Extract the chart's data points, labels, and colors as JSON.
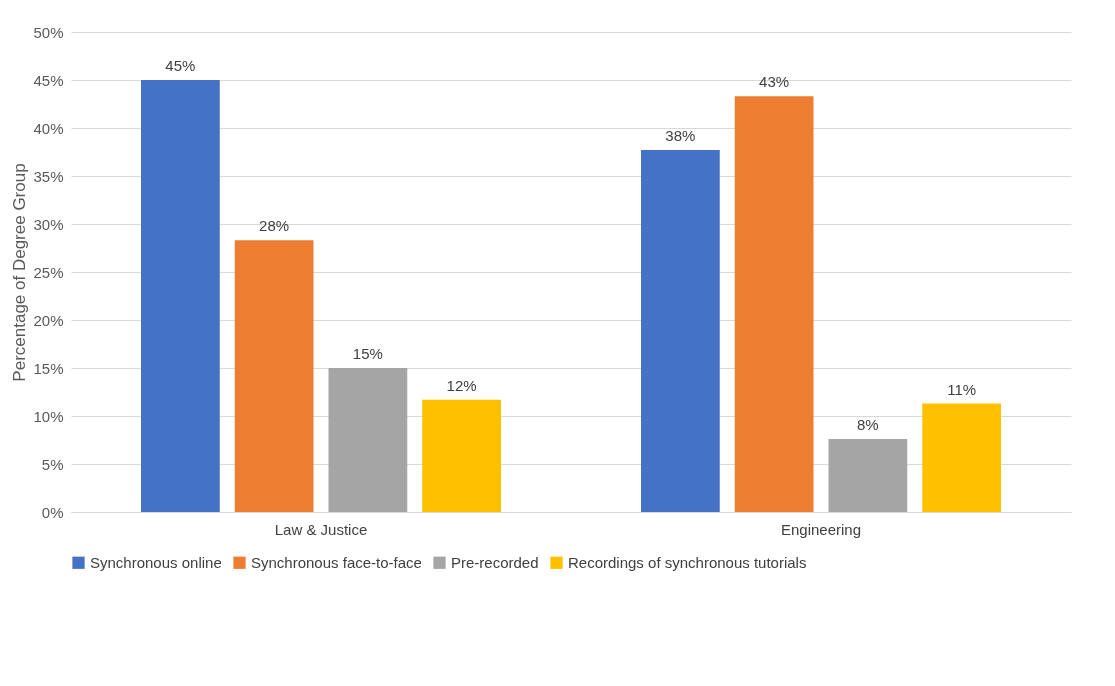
{
  "chart_data": {
    "type": "bar",
    "ylabel": "Percentage of Degree Group",
    "categories": [
      "Law & Justice",
      "Engineering"
    ],
    "series": [
      {
        "name": "Synchronous online",
        "color": "#4472c4",
        "values": [
          45.0,
          37.7
        ],
        "value_labels": [
          "45%",
          "38%"
        ]
      },
      {
        "name": "Synchronous face-to-face",
        "color": "#ed7d31",
        "values": [
          28.3,
          43.3
        ],
        "value_labels": [
          "28%",
          "43%"
        ]
      },
      {
        "name": "Pre-recorded",
        "color": "#a5a5a5",
        "values": [
          15.0,
          7.6
        ],
        "value_labels": [
          "15%",
          "8%"
        ]
      },
      {
        "name": "Recordings of synchronous tutorials",
        "color": "#ffc000",
        "values": [
          11.7,
          11.3
        ],
        "value_labels": [
          "12%",
          "11%"
        ]
      }
    ],
    "ylim": [
      0,
      50
    ],
    "yticks": [
      {
        "value": 0,
        "label": "0%"
      },
      {
        "value": 5,
        "label": "5%"
      },
      {
        "value": 10,
        "label": "10%"
      },
      {
        "value": 15,
        "label": "15%"
      },
      {
        "value": 20,
        "label": "20%"
      },
      {
        "value": 25,
        "label": "25%"
      },
      {
        "value": 30,
        "label": "30%"
      },
      {
        "value": 35,
        "label": "35%"
      },
      {
        "value": 40,
        "label": "40%"
      },
      {
        "value": 45,
        "label": "45%"
      },
      {
        "value": 50,
        "label": "50%"
      }
    ],
    "grid": "y",
    "legend": "bottom"
  }
}
